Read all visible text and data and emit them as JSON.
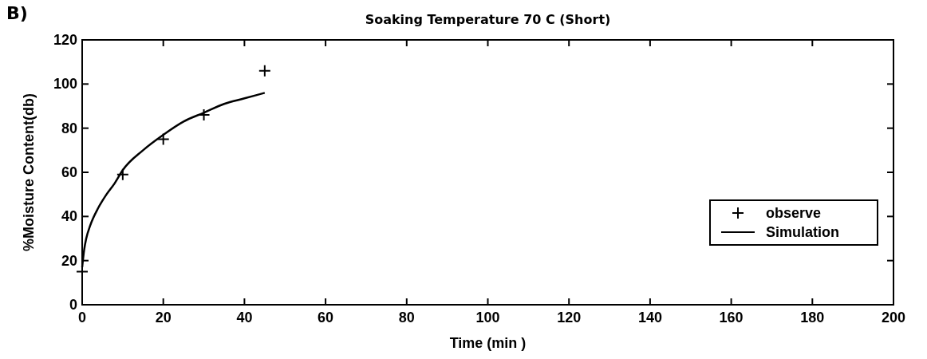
{
  "chart_data": {
    "type": "scatter",
    "title": "Soaking Temperature 70 C (Short)",
    "xlabel": "Time (min )",
    "ylabel": "%Moisture Content(db)",
    "annotations": [
      "B)"
    ],
    "xlim": [
      0,
      200
    ],
    "xticks": [
      0,
      20,
      40,
      60,
      80,
      100,
      120,
      140,
      160,
      180,
      200
    ],
    "ylim": [
      0,
      120
    ],
    "yticks": [
      0,
      20,
      40,
      60,
      80,
      100,
      120
    ],
    "grid": false,
    "legend": "right",
    "series": [
      {
        "name": "observe",
        "marker": "cross",
        "color": "#000000",
        "x": [
          0,
          10,
          20,
          30,
          45
        ],
        "values": [
          15,
          59,
          75,
          86,
          106
        ]
      },
      {
        "name": "Simulation",
        "type": "line",
        "marker": "none",
        "line_style": "solid",
        "color": "#000000",
        "x": [
          0,
          0.5,
          1,
          2,
          4,
          6,
          8,
          10,
          15,
          20,
          25,
          30,
          35,
          40,
          45
        ],
        "values": [
          17,
          25,
          30,
          36,
          44,
          50,
          55,
          61,
          70,
          77,
          83,
          87,
          91,
          93.5,
          96
        ]
      }
    ]
  }
}
